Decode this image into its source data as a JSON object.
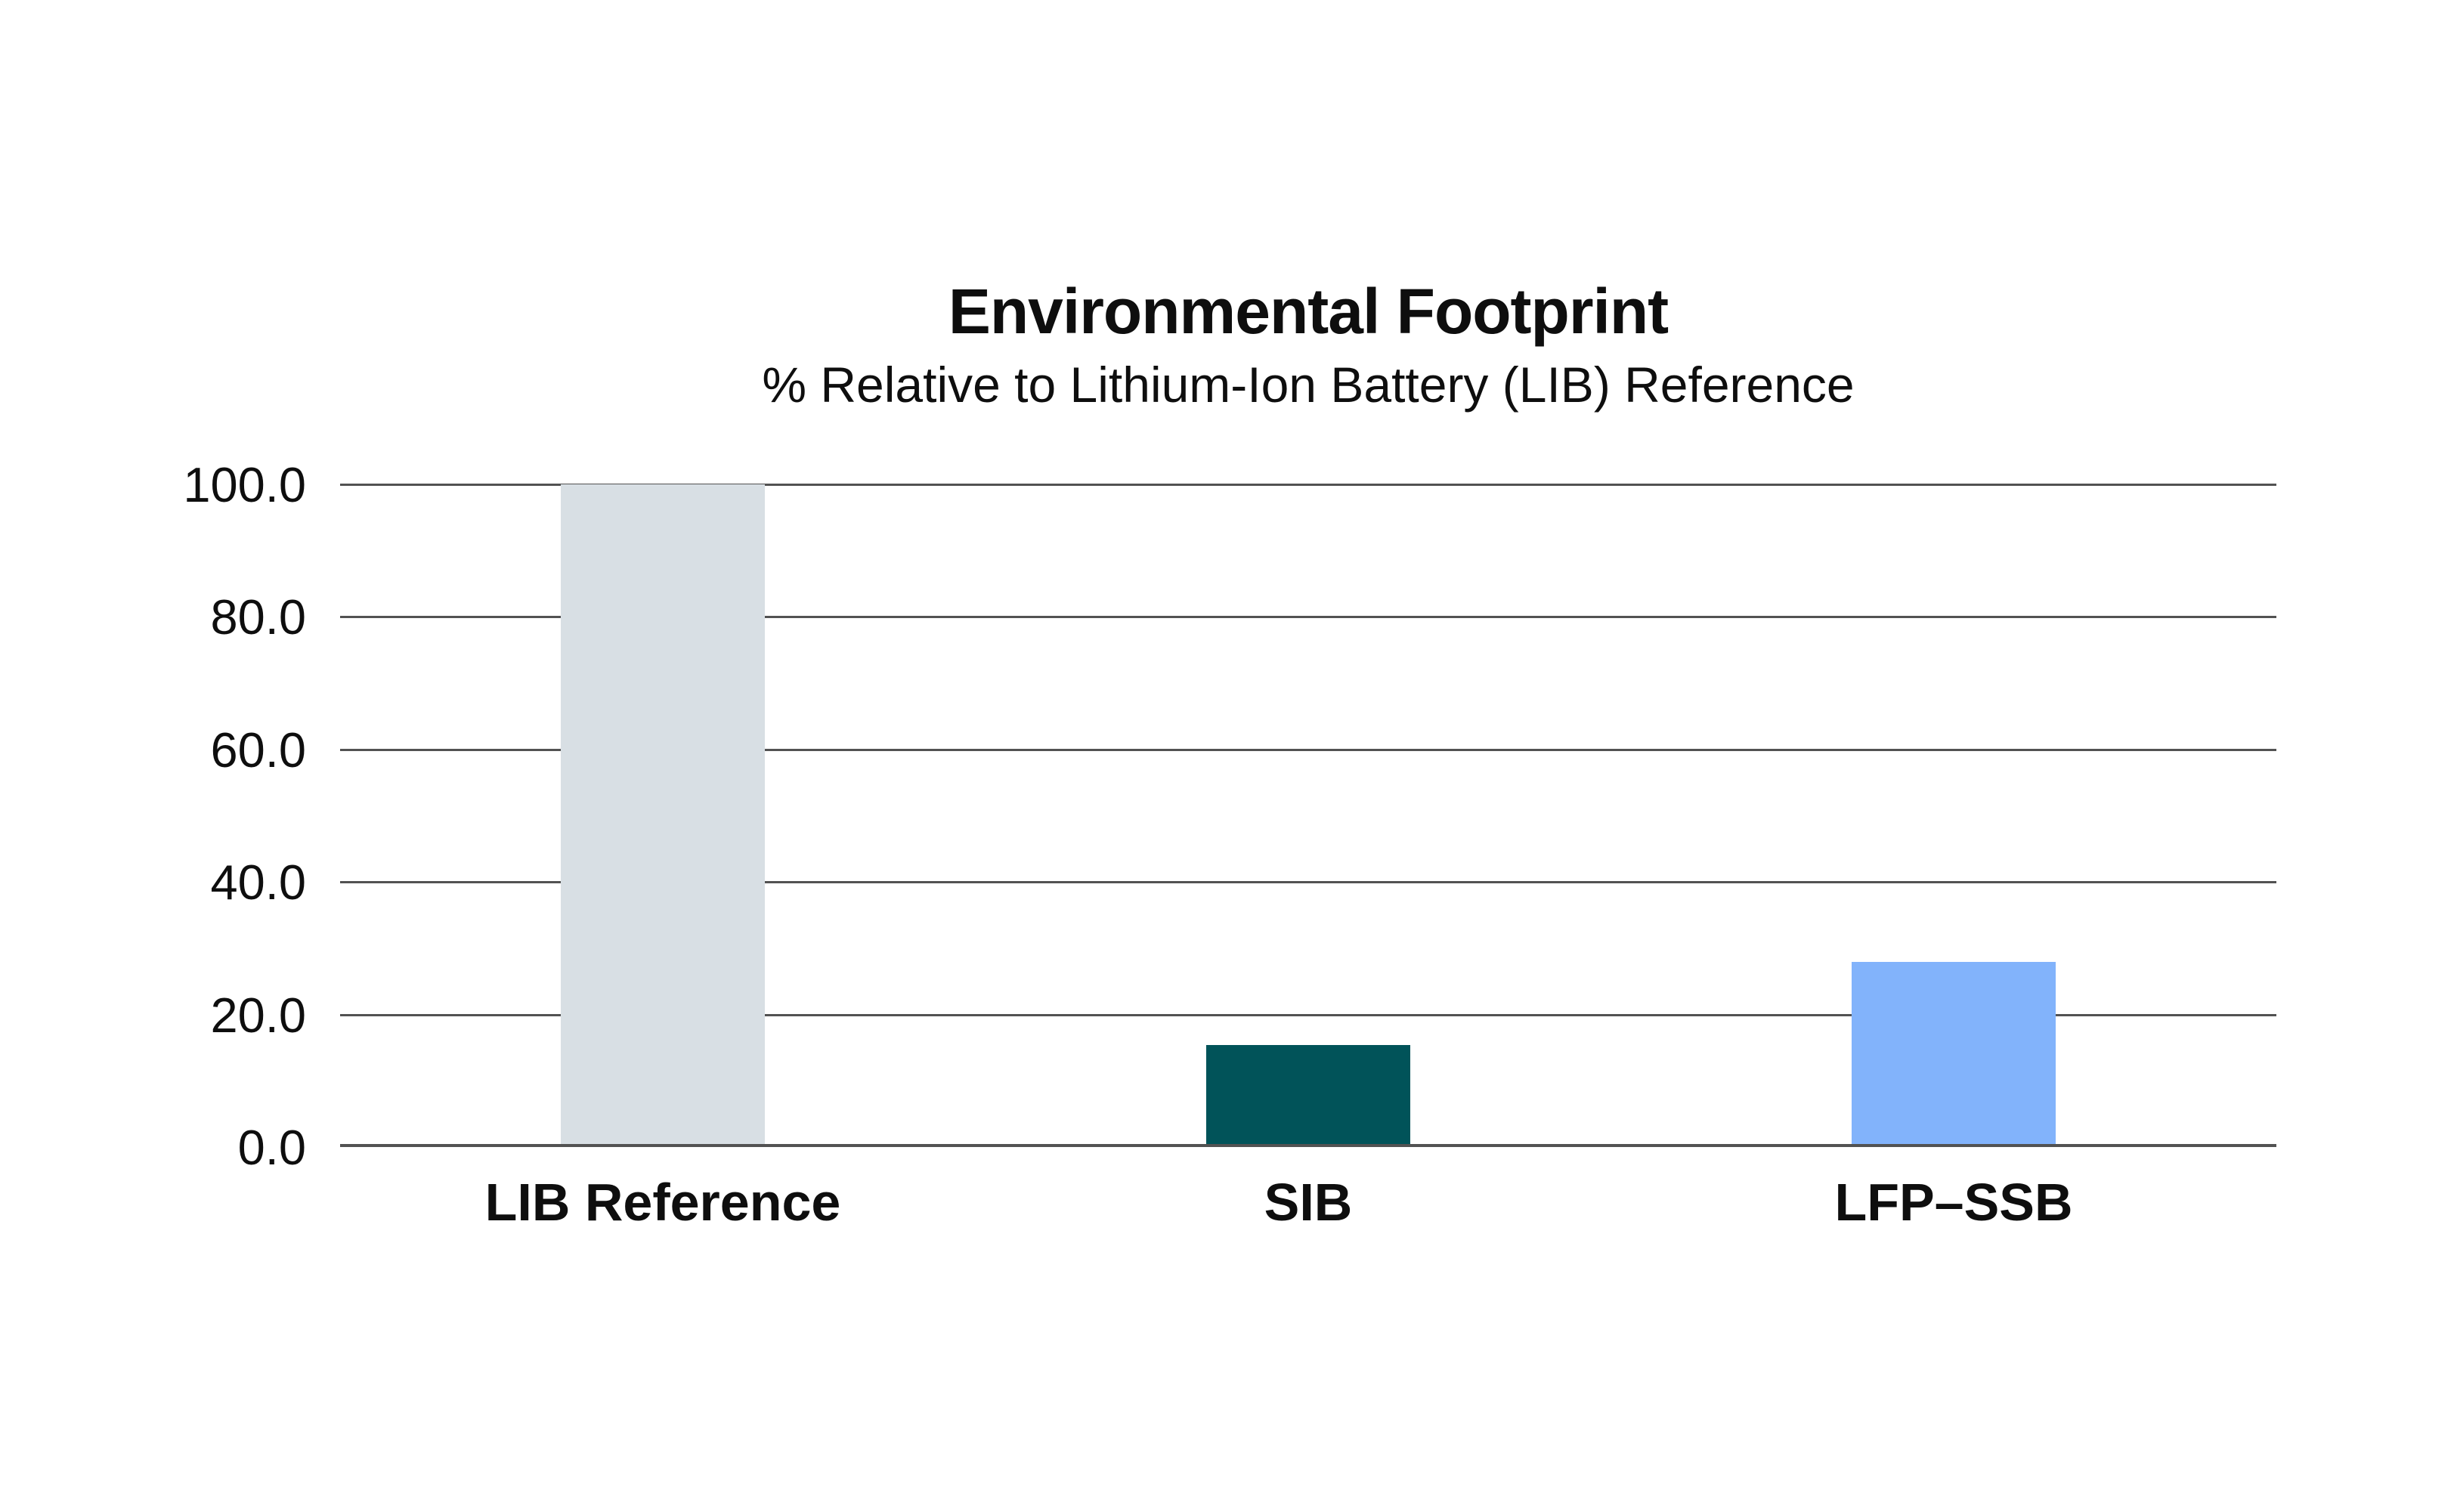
{
  "chart_data": {
    "type": "bar",
    "title": "Environmental Footprint",
    "subtitle": "% Relative to Lithium-Ion Battery (LIB) Reference",
    "categories": [
      "LIB Reference",
      "SIB",
      "LFP–SSB"
    ],
    "values": [
      100.0,
      15.4,
      27.9
    ],
    "bar_colors": [
      "#d8dfe4",
      "#015359",
      "#82b3fb"
    ],
    "ylim": [
      0,
      100
    ],
    "yticks": [
      100,
      80,
      60,
      40,
      20,
      0
    ],
    "ytick_labels": [
      "100.0",
      "80.0",
      "60.0",
      "40.0",
      "20.0",
      "0.0"
    ],
    "xlabel": "",
    "ylabel": "",
    "grid": "horizontal-only",
    "gridline_color": "#525252",
    "background_color": "#ffffff",
    "text_color": "#0e0e0e",
    "legend": "none"
  }
}
